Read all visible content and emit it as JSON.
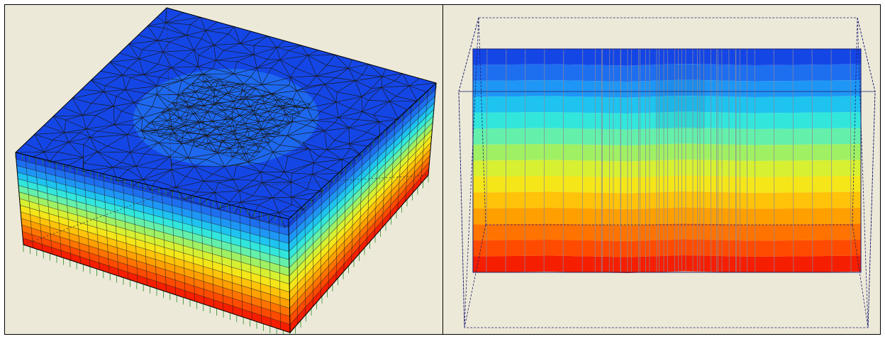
{
  "colors": {
    "background": "#ece9d8",
    "border": "#000000",
    "mesh_line": "#1a1a1a",
    "load_arrow": "#2e8b2e",
    "bounding_box": "#1e1e6e",
    "column_line": "#8a8a9a",
    "contour_scale": [
      "#1446e6",
      "#1e6ef0",
      "#1e96f5",
      "#1ec3f0",
      "#32e6dc",
      "#64f0aa",
      "#a0f064",
      "#d7f032",
      "#f5e619",
      "#ffc30a",
      "#ffa000",
      "#ff7300",
      "#ff4b00",
      "#f51e00"
    ]
  },
  "panels": [
    {
      "id": "left",
      "view": "isometric-3d-mesh"
    },
    {
      "id": "right",
      "view": "front-elevation-contour"
    }
  ]
}
